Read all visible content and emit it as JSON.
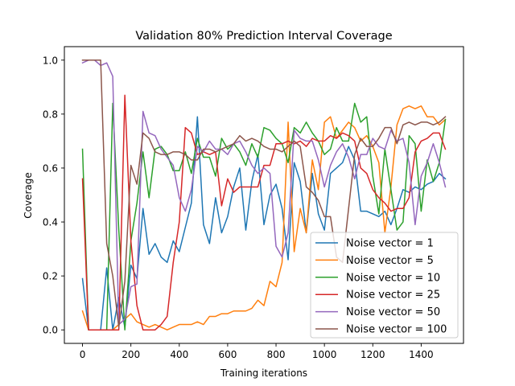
{
  "chart_data": {
    "type": "line",
    "title": "Validation 80% Prediction Interval Coverage",
    "xlabel": "Training iterations",
    "ylabel": "Coverage",
    "xlim": [
      -75,
      1575
    ],
    "ylim": [
      -0.05,
      1.05
    ],
    "xticks": [
      0,
      200,
      400,
      600,
      800,
      1000,
      1200,
      1400
    ],
    "yticks": [
      0.0,
      0.2,
      0.4,
      0.6,
      0.8,
      1.0
    ],
    "xtick_labels": [
      "0",
      "200",
      "400",
      "600",
      "800",
      "1000",
      "1200",
      "1400"
    ],
    "ytick_labels": [
      "0.0",
      "0.2",
      "0.4",
      "0.6",
      "0.8",
      "1.0"
    ],
    "grid": false,
    "legend_position": "lower-right",
    "x": [
      0,
      25,
      50,
      75,
      100,
      125,
      150,
      175,
      200,
      225,
      250,
      275,
      300,
      325,
      350,
      375,
      400,
      425,
      450,
      475,
      500,
      525,
      550,
      575,
      600,
      625,
      650,
      675,
      700,
      725,
      750,
      775,
      800,
      825,
      850,
      875,
      900,
      925,
      950,
      975,
      1000,
      1025,
      1050,
      1075,
      1100,
      1125,
      1150,
      1175,
      1200,
      1225,
      1250,
      1275,
      1300,
      1325,
      1350,
      1375,
      1400,
      1425,
      1450,
      1475,
      1500
    ],
    "series": [
      {
        "name": "Noise vector = 1",
        "color": "#1f77b4",
        "values": [
          0.19,
          0.0,
          0.0,
          0.0,
          0.23,
          0.0,
          0.12,
          0.01,
          0.24,
          0.19,
          0.45,
          0.28,
          0.32,
          0.27,
          0.25,
          0.33,
          0.29,
          0.38,
          0.47,
          0.79,
          0.39,
          0.32,
          0.49,
          0.36,
          0.42,
          0.53,
          0.6,
          0.37,
          0.55,
          0.65,
          0.39,
          0.5,
          0.54,
          0.45,
          0.26,
          0.62,
          0.55,
          0.36,
          0.58,
          0.43,
          0.37,
          0.58,
          0.6,
          0.62,
          0.68,
          0.63,
          0.44,
          0.44,
          0.43,
          0.42,
          0.44,
          0.39,
          0.45,
          0.52,
          0.51,
          0.53,
          0.52,
          0.54,
          0.55,
          0.58,
          0.56
        ]
      },
      {
        "name": "Noise vector = 5",
        "color": "#ff7f0e",
        "values": [
          0.07,
          0.0,
          0.0,
          0.0,
          0.0,
          0.0,
          0.02,
          0.04,
          0.06,
          0.03,
          0.02,
          0.01,
          0.02,
          0.01,
          0.0,
          0.01,
          0.02,
          0.02,
          0.02,
          0.03,
          0.02,
          0.05,
          0.05,
          0.06,
          0.06,
          0.07,
          0.07,
          0.07,
          0.08,
          0.11,
          0.09,
          0.18,
          0.16,
          0.25,
          0.77,
          0.29,
          0.45,
          0.36,
          0.63,
          0.52,
          0.77,
          0.79,
          0.71,
          0.74,
          0.77,
          0.75,
          0.7,
          0.72,
          0.68,
          0.62,
          0.36,
          0.53,
          0.76,
          0.82,
          0.83,
          0.82,
          0.83,
          0.79,
          0.79,
          0.76,
          0.78
        ]
      },
      {
        "name": "Noise vector = 10",
        "color": "#2ca02c",
        "values": [
          0.67,
          0.0,
          0.0,
          0.0,
          0.0,
          0.84,
          0.37,
          0.0,
          0.33,
          0.47,
          0.66,
          0.49,
          0.67,
          0.68,
          0.65,
          0.59,
          0.59,
          0.66,
          0.58,
          0.71,
          0.64,
          0.64,
          0.57,
          0.71,
          0.67,
          0.69,
          0.66,
          0.61,
          0.69,
          0.64,
          0.75,
          0.74,
          0.71,
          0.69,
          0.62,
          0.75,
          0.73,
          0.77,
          0.73,
          0.7,
          0.65,
          0.67,
          0.75,
          0.7,
          0.7,
          0.84,
          0.77,
          0.79,
          0.57,
          0.43,
          0.67,
          0.52,
          0.37,
          0.4,
          0.72,
          0.69,
          0.44,
          0.63,
          0.55,
          0.62,
          0.78
        ]
      },
      {
        "name": "Noise vector = 25",
        "color": "#d62728",
        "values": [
          0.56,
          0.0,
          0.0,
          0.0,
          0.0,
          0.0,
          0.0,
          0.87,
          0.33,
          0.09,
          0.0,
          0.0,
          0.0,
          0.02,
          0.05,
          0.25,
          0.4,
          0.75,
          0.73,
          0.65,
          0.66,
          0.65,
          0.66,
          0.46,
          0.56,
          0.51,
          0.53,
          0.53,
          0.53,
          0.53,
          0.61,
          0.61,
          0.69,
          0.69,
          0.7,
          0.69,
          0.7,
          0.68,
          0.71,
          0.7,
          0.7,
          0.72,
          0.71,
          0.73,
          0.72,
          0.7,
          0.6,
          0.58,
          0.52,
          0.49,
          0.47,
          0.44,
          0.45,
          0.45,
          0.49,
          0.66,
          0.7,
          0.71,
          0.73,
          0.73,
          0.67
        ]
      },
      {
        "name": "Noise vector = 50",
        "color": "#9467bd",
        "values": [
          0.99,
          1.0,
          1.0,
          0.98,
          0.99,
          0.94,
          0.02,
          0.04,
          0.16,
          0.17,
          0.81,
          0.73,
          0.72,
          0.67,
          0.64,
          0.61,
          0.49,
          0.44,
          0.52,
          0.68,
          0.66,
          0.7,
          0.67,
          0.67,
          0.65,
          0.69,
          0.7,
          0.66,
          0.61,
          0.58,
          0.6,
          0.58,
          0.31,
          0.27,
          0.36,
          0.74,
          0.71,
          0.7,
          0.7,
          0.63,
          0.53,
          0.61,
          0.66,
          0.69,
          0.64,
          0.56,
          0.65,
          0.65,
          0.71,
          0.68,
          0.67,
          0.74,
          0.7,
          0.71,
          0.62,
          0.39,
          0.57,
          0.62,
          0.69,
          0.62,
          0.53
        ]
      },
      {
        "name": "Noise vector = 100",
        "color": "#8c564b",
        "values": [
          1.0,
          1.0,
          1.0,
          1.0,
          0.32,
          0.2,
          0.01,
          0.18,
          0.61,
          0.54,
          0.73,
          0.71,
          0.66,
          0.65,
          0.65,
          0.66,
          0.66,
          0.65,
          0.63,
          0.63,
          0.67,
          0.67,
          0.66,
          0.67,
          0.68,
          0.69,
          0.72,
          0.7,
          0.71,
          0.7,
          0.68,
          0.67,
          0.67,
          0.66,
          0.68,
          0.7,
          0.68,
          0.53,
          0.51,
          0.48,
          0.42,
          0.42,
          0.27,
          0.25,
          0.45,
          0.65,
          0.71,
          0.68,
          0.68,
          0.71,
          0.75,
          0.75,
          0.69,
          0.76,
          0.77,
          0.76,
          0.77,
          0.77,
          0.76,
          0.77,
          0.79
        ]
      }
    ]
  }
}
